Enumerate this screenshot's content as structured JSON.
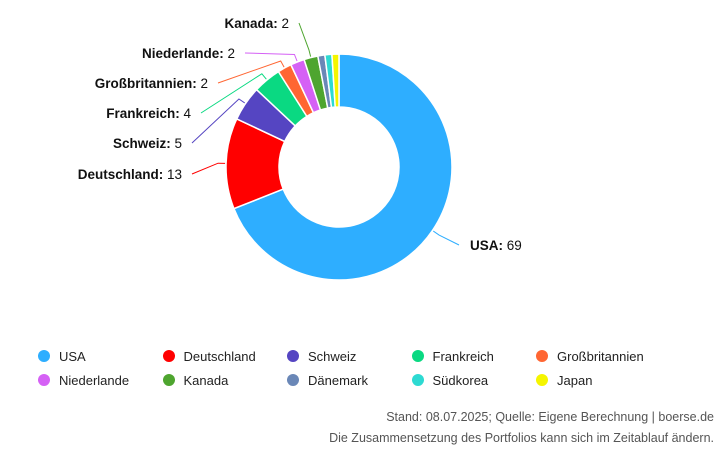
{
  "chart_data": {
    "type": "pie",
    "variant": "donut",
    "slices": [
      {
        "label": "USA",
        "value": 69,
        "color": "#2eaeff"
      },
      {
        "label": "Deutschland",
        "value": 13,
        "color": "#ff0000"
      },
      {
        "label": "Schweiz",
        "value": 5,
        "color": "#5545c2"
      },
      {
        "label": "Frankreich",
        "value": 4,
        "color": "#0ad982"
      },
      {
        "label": "Großbritannien",
        "value": 2,
        "color": "#ff6633"
      },
      {
        "label": "Niederlande",
        "value": 2,
        "color": "#d561f5"
      },
      {
        "label": "Kanada",
        "value": 2,
        "color": "#4ea52f"
      },
      {
        "label": "Dänemark",
        "value": 1,
        "color": "#6a87b7"
      },
      {
        "label": "Südkorea",
        "value": 1,
        "color": "#2ddad2"
      },
      {
        "label": "Japan",
        "value": 1,
        "color": "#f5f500"
      }
    ],
    "data_labels": [
      {
        "label": "USA",
        "value": "69"
      },
      {
        "label": "Deutschland",
        "value": "13"
      },
      {
        "label": "Schweiz",
        "value": "5"
      },
      {
        "label": "Frankreich",
        "value": "4"
      },
      {
        "label": "Großbritannien",
        "value": "2"
      },
      {
        "label": "Niederlande",
        "value": "2"
      },
      {
        "label": "Kanada",
        "value": "2"
      }
    ],
    "legend": {
      "placement": "bottom",
      "items": [
        "USA",
        "Deutschland",
        "Schweiz",
        "Frankreich",
        "Großbritannien",
        "Niederlande",
        "Kanada",
        "Dänemark",
        "Südkorea",
        "Japan"
      ]
    }
  },
  "footer": {
    "source": "Stand: 08.07.2025; Quelle: Eigene Berechnung | boerse.de",
    "note": "Die Zusammensetzung des Portfolios kann sich im Zeitablauf ändern."
  }
}
